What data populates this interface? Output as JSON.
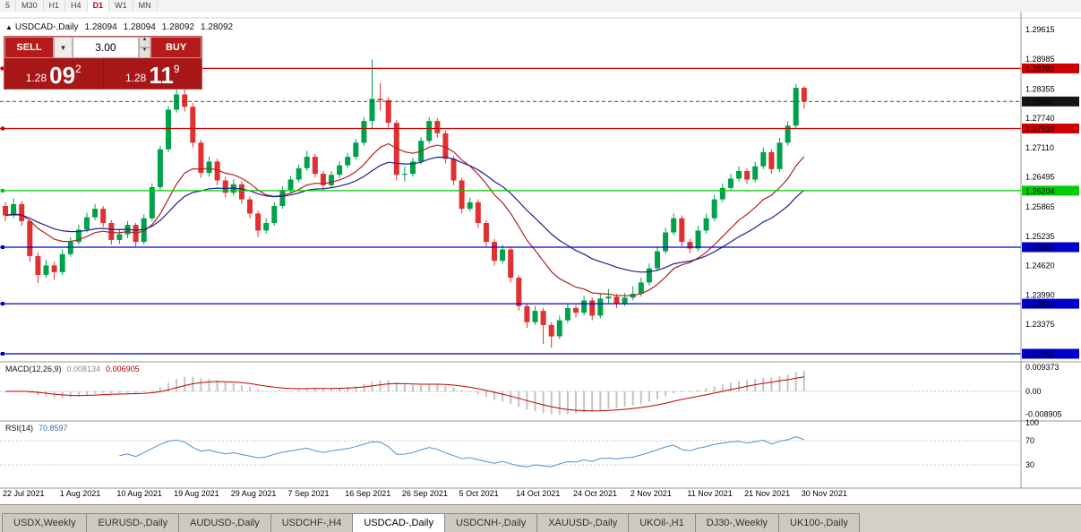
{
  "toolbar": {
    "timeframes": [
      {
        "label": "5",
        "active": false
      },
      {
        "label": "M30",
        "active": false
      },
      {
        "label": "H1",
        "active": false
      },
      {
        "label": "H4",
        "active": false
      },
      {
        "label": "D1",
        "active": true
      },
      {
        "label": "W1",
        "active": false
      },
      {
        "label": "MN",
        "active": false
      }
    ]
  },
  "window": {
    "symbol": "USDCAD-,Daily",
    "ohlc": [
      "1.28094",
      "1.28094",
      "1.28092",
      "1.28092"
    ]
  },
  "trade_panel": {
    "sell_label": "SELL",
    "buy_label": "BUY",
    "volume": "3.00",
    "sell_price": {
      "small": "1.28",
      "big": "09",
      "sup": "2"
    },
    "buy_price": {
      "small": "1.28",
      "big": "11",
      "sup": "9"
    }
  },
  "chart_data": {
    "type": "candlestick",
    "symbol": "USDCAD-",
    "timeframe": "Daily",
    "up_color": "#00A14B",
    "down_color": "#E03030",
    "y_axis_range": [
      1.226,
      1.2982
    ],
    "y_axis_ticks": [
      "1.29615",
      "1.28985",
      "1.28355",
      "1.27740",
      "1.27110",
      "1.26495",
      "1.25865",
      "1.25235",
      "1.24620",
      "1.23990",
      "1.23375"
    ],
    "x_labels": [
      "22 Jul 2021",
      "1 Aug 2021",
      "10 Aug 2021",
      "19 Aug 2021",
      "29 Aug 2021",
      "7 Sep 2021",
      "16 Sep 2021",
      "26 Sep 2021",
      "5 Oct 2021",
      "14 Oct 2021",
      "24 Oct 2021",
      "2 Nov 2021",
      "11 Nov 2021",
      "21 Nov 2021",
      "30 Nov 2021"
    ],
    "price_lines": [
      {
        "price": 1.28792,
        "color": "#CC0000"
      },
      {
        "price": 1.27519,
        "color": "#CC0000"
      },
      {
        "price": 1.26204,
        "color": "#00CC00"
      },
      {
        "price": 1.25008,
        "color": "#0000CC"
      },
      {
        "price": 1.23812,
        "color": "#0000CC"
      },
      {
        "price": 1.22751,
        "color": "#0000CC"
      }
    ],
    "current_price": {
      "value": 1.28092,
      "badge_color": "#151515"
    },
    "overlays": [
      {
        "name": "ma-fast-line",
        "period": 13,
        "color": "#B22222"
      },
      {
        "name": "ma-slow-line",
        "period": 26,
        "color": "#1F1F8F"
      }
    ],
    "indicators": [
      {
        "name": "MACD",
        "title": "MACD(12,26,9)",
        "values": [
          "0.008134",
          "0.006905"
        ],
        "axis_labels": [
          "0.009373",
          "0.00",
          "-0.008905"
        ],
        "fast": 12,
        "slow": 26,
        "signal": 9,
        "hist_color": "#C4C4C4",
        "signal_color": "#C00000"
      },
      {
        "name": "RSI",
        "title": "RSI(14)",
        "value": "70.8597",
        "period": 14,
        "axis_labels": [
          "100",
          "70",
          "30"
        ],
        "levels": [
          70,
          30
        ],
        "line_color": "#4E8FD0"
      }
    ],
    "candles": [
      [
        1.2588,
        1.2596,
        1.2556,
        1.2568
      ],
      [
        1.2568,
        1.2604,
        1.2562,
        1.2592
      ],
      [
        1.2592,
        1.2598,
        1.2546,
        1.2556
      ],
      [
        1.2556,
        1.256,
        1.247,
        1.2482
      ],
      [
        1.2482,
        1.249,
        1.2425,
        1.2442
      ],
      [
        1.2442,
        1.2474,
        1.2436,
        1.2462
      ],
      [
        1.2462,
        1.247,
        1.2432,
        1.2448
      ],
      [
        1.2448,
        1.2496,
        1.2442,
        1.2486
      ],
      [
        1.2486,
        1.2522,
        1.248,
        1.2512
      ],
      [
        1.2512,
        1.2548,
        1.2506,
        1.2538
      ],
      [
        1.2538,
        1.2574,
        1.2532,
        1.2564
      ],
      [
        1.2564,
        1.2592,
        1.2558,
        1.2582
      ],
      [
        1.2582,
        1.2588,
        1.2544,
        1.2552
      ],
      [
        1.2552,
        1.2558,
        1.2506,
        1.2516
      ],
      [
        1.2516,
        1.2538,
        1.2508,
        1.2528
      ],
      [
        1.2528,
        1.2556,
        1.252,
        1.2548
      ],
      [
        1.2548,
        1.2552,
        1.2502,
        1.2512
      ],
      [
        1.2512,
        1.257,
        1.2506,
        1.2562
      ],
      [
        1.2562,
        1.2636,
        1.2556,
        1.2628
      ],
      [
        1.2628,
        1.2716,
        1.2622,
        1.2708
      ],
      [
        1.2708,
        1.28,
        1.2702,
        1.2792
      ],
      [
        1.2792,
        1.2846,
        1.2786,
        1.2824
      ],
      [
        1.2824,
        1.284,
        1.2788,
        1.2798
      ],
      [
        1.2798,
        1.2806,
        1.2712,
        1.2722
      ],
      [
        1.2722,
        1.2728,
        1.2648,
        1.2658
      ],
      [
        1.2658,
        1.2692,
        1.265,
        1.2682
      ],
      [
        1.2682,
        1.2688,
        1.2632,
        1.2642
      ],
      [
        1.2642,
        1.265,
        1.2606,
        1.2616
      ],
      [
        1.2616,
        1.2644,
        1.261,
        1.2634
      ],
      [
        1.2634,
        1.264,
        1.2592,
        1.2602
      ],
      [
        1.2602,
        1.2608,
        1.2562,
        1.2572
      ],
      [
        1.2572,
        1.2578,
        1.2522,
        1.2536
      ],
      [
        1.2536,
        1.2562,
        1.253,
        1.2552
      ],
      [
        1.2552,
        1.2596,
        1.2546,
        1.2588
      ],
      [
        1.2588,
        1.263,
        1.2582,
        1.2622
      ],
      [
        1.2622,
        1.2652,
        1.2616,
        1.2644
      ],
      [
        1.2644,
        1.2676,
        1.2638,
        1.2668
      ],
      [
        1.2668,
        1.2705,
        1.2662,
        1.2692
      ],
      [
        1.2692,
        1.2698,
        1.2648,
        1.2656
      ],
      [
        1.2656,
        1.2662,
        1.2622,
        1.2632
      ],
      [
        1.2632,
        1.2662,
        1.2626,
        1.2654
      ],
      [
        1.2654,
        1.2682,
        1.2648,
        1.2674
      ],
      [
        1.2674,
        1.27,
        1.2668,
        1.2692
      ],
      [
        1.2692,
        1.273,
        1.2686,
        1.2722
      ],
      [
        1.2722,
        1.2776,
        1.2716,
        1.2768
      ],
      [
        1.2768,
        1.2898,
        1.2752,
        1.2815
      ],
      [
        1.2815,
        1.2848,
        1.279,
        1.2812
      ],
      [
        1.2812,
        1.2818,
        1.2754,
        1.2764
      ],
      [
        1.2764,
        1.277,
        1.2642,
        1.2654
      ],
      [
        1.2654,
        1.2672,
        1.264,
        1.2656
      ],
      [
        1.2656,
        1.269,
        1.265,
        1.2682
      ],
      [
        1.2682,
        1.2734,
        1.2676,
        1.2726
      ],
      [
        1.2726,
        1.2776,
        1.272,
        1.2768
      ],
      [
        1.2768,
        1.2774,
        1.2732,
        1.2742
      ],
      [
        1.2742,
        1.2748,
        1.2678,
        1.2688
      ],
      [
        1.2688,
        1.2694,
        1.2632,
        1.2642
      ],
      [
        1.2642,
        1.2648,
        1.2572,
        1.2582
      ],
      [
        1.2582,
        1.2606,
        1.2576,
        1.2596
      ],
      [
        1.2596,
        1.2602,
        1.2542,
        1.2552
      ],
      [
        1.2552,
        1.2558,
        1.2502,
        1.2512
      ],
      [
        1.2512,
        1.2518,
        1.2462,
        1.2472
      ],
      [
        1.2472,
        1.2506,
        1.2466,
        1.2496
      ],
      [
        1.2496,
        1.2502,
        1.2426,
        1.2436
      ],
      [
        1.2436,
        1.2442,
        1.2366,
        1.2376
      ],
      [
        1.2376,
        1.2382,
        1.233,
        1.2342
      ],
      [
        1.2342,
        1.2376,
        1.2336,
        1.2366
      ],
      [
        1.2366,
        1.2372,
        1.2296,
        1.2336
      ],
      [
        1.2336,
        1.2342,
        1.2288,
        1.2312
      ],
      [
        1.2312,
        1.2356,
        1.2306,
        1.2346
      ],
      [
        1.2346,
        1.2382,
        1.234,
        1.2372
      ],
      [
        1.2372,
        1.2378,
        1.2352,
        1.2362
      ],
      [
        1.2362,
        1.2398,
        1.2356,
        1.2388
      ],
      [
        1.2388,
        1.2394,
        1.2346,
        1.2356
      ],
      [
        1.2356,
        1.2402,
        1.235,
        1.2392
      ],
      [
        1.2392,
        1.2412,
        1.2382,
        1.2396
      ],
      [
        1.2396,
        1.2402,
        1.2372,
        1.2382
      ],
      [
        1.2382,
        1.2404,
        1.2376,
        1.2394
      ],
      [
        1.2394,
        1.2418,
        1.2388,
        1.2402
      ],
      [
        1.2402,
        1.2436,
        1.2396,
        1.2426
      ],
      [
        1.2426,
        1.2466,
        1.242,
        1.2456
      ],
      [
        1.2456,
        1.2502,
        1.245,
        1.2492
      ],
      [
        1.2492,
        1.2542,
        1.2486,
        1.2532
      ],
      [
        1.2532,
        1.2572,
        1.2526,
        1.2562
      ],
      [
        1.2562,
        1.2568,
        1.2502,
        1.2512
      ],
      [
        1.2512,
        1.2518,
        1.2488,
        1.2498
      ],
      [
        1.2498,
        1.2546,
        1.2492,
        1.2536
      ],
      [
        1.2536,
        1.2572,
        1.253,
        1.2562
      ],
      [
        1.2562,
        1.2612,
        1.2556,
        1.2602
      ],
      [
        1.2602,
        1.2636,
        1.2596,
        1.2626
      ],
      [
        1.2626,
        1.2656,
        1.262,
        1.2646
      ],
      [
        1.2646,
        1.2672,
        1.264,
        1.2662
      ],
      [
        1.2662,
        1.2668,
        1.2634,
        1.2644
      ],
      [
        1.2644,
        1.2682,
        1.2638,
        1.2672
      ],
      [
        1.2672,
        1.2712,
        1.2666,
        1.2702
      ],
      [
        1.2702,
        1.2708,
        1.2656,
        1.2666
      ],
      [
        1.2666,
        1.2732,
        1.266,
        1.2722
      ],
      [
        1.2722,
        1.2768,
        1.2716,
        1.2758
      ],
      [
        1.2758,
        1.2846,
        1.2752,
        1.2838
      ],
      [
        1.2838,
        1.2842,
        1.2794,
        1.2809
      ]
    ]
  },
  "tabs": [
    {
      "label": "USDX,Weekly",
      "active": false
    },
    {
      "label": "EURUSD-,Daily",
      "active": false
    },
    {
      "label": "AUDUSD-,Daily",
      "active": false
    },
    {
      "label": "USDCHF-,H4",
      "active": false
    },
    {
      "label": "USDCAD-,Daily",
      "active": true
    },
    {
      "label": "USDCNH-,Daily",
      "active": false
    },
    {
      "label": "XAUUSD-,Daily",
      "active": false
    },
    {
      "label": "UKOil-,H1",
      "active": false
    },
    {
      "label": "DJ30-,Weekly",
      "active": false
    },
    {
      "label": "UK100-,Daily",
      "active": false
    }
  ]
}
